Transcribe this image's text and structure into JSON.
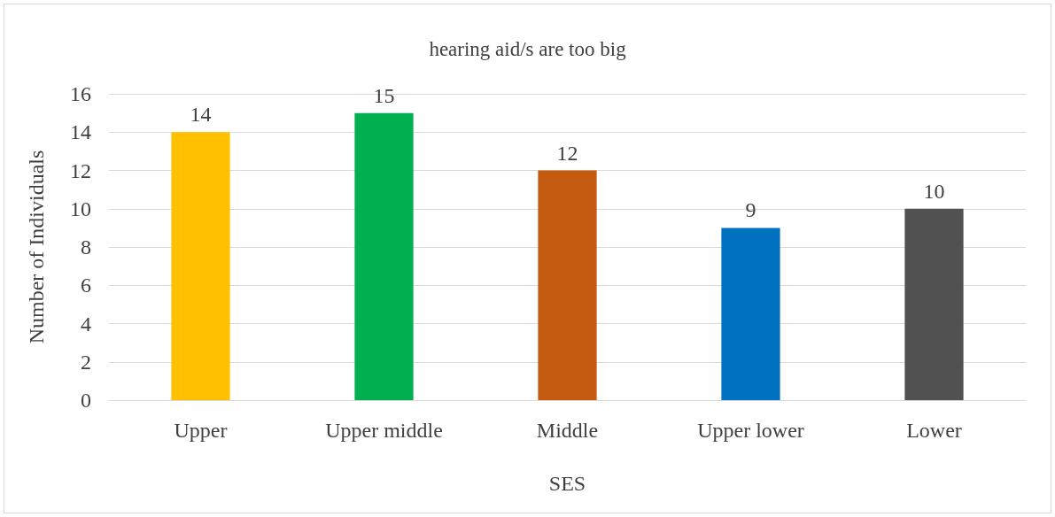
{
  "chart_data": {
    "type": "bar",
    "title": "hearing aid/s are too big",
    "xlabel": "SES",
    "ylabel": "Number of Individuals",
    "categories": [
      "Upper",
      "Upper middle",
      "Middle",
      "Upper lower",
      "Lower"
    ],
    "values": [
      14,
      15,
      12,
      9,
      10
    ],
    "colors": [
      "#ffc000",
      "#00b050",
      "#c55a11",
      "#0070c0",
      "#515151"
    ],
    "ylim": [
      0,
      16
    ],
    "yticks": [
      0,
      2,
      4,
      6,
      8,
      10,
      12,
      14,
      16
    ],
    "grid": "y",
    "data_labels": true
  }
}
